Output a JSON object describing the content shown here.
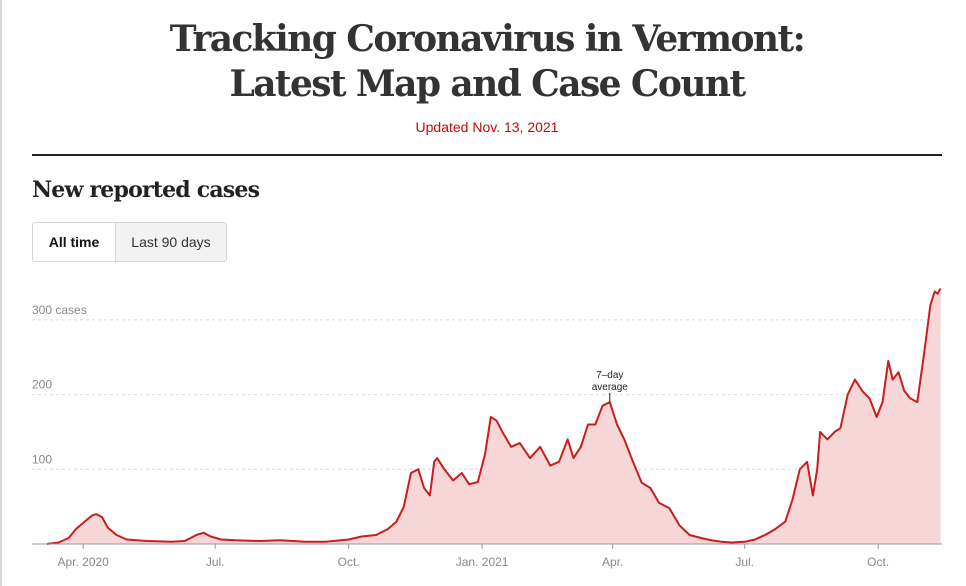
{
  "page": {
    "title_line1": "Tracking Coronavirus in Vermont:",
    "title_line2": "Latest Map and Case Count",
    "updated": "Updated Nov. 13, 2021"
  },
  "section": {
    "title": "New reported cases",
    "toggle": {
      "active": "All time",
      "inactive": "Last 90 days"
    }
  },
  "colors": {
    "line": "#c81e1e",
    "fill": "#f6d6d6",
    "accent": "#c30b0b",
    "grid": "#dcdcdc"
  },
  "chart_data": {
    "type": "area",
    "title": "New reported cases",
    "series": [
      {
        "name": "7–day average",
        "x": [
          "2020-03-07",
          "2020-03-15",
          "2020-03-22",
          "2020-03-27",
          "2020-04-02",
          "2020-04-07",
          "2020-04-10",
          "2020-04-14",
          "2020-04-18",
          "2020-04-24",
          "2020-05-01",
          "2020-05-15",
          "2020-06-01",
          "2020-06-10",
          "2020-06-18",
          "2020-06-23",
          "2020-06-28",
          "2020-07-05",
          "2020-07-15",
          "2020-08-01",
          "2020-08-15",
          "2020-09-01",
          "2020-09-15",
          "2020-10-01",
          "2020-10-10",
          "2020-10-20",
          "2020-10-28",
          "2020-11-03",
          "2020-11-08",
          "2020-11-13",
          "2020-11-18",
          "2020-11-22",
          "2020-11-26",
          "2020-11-29",
          "2020-12-01",
          "2020-12-06",
          "2020-12-12",
          "2020-12-18",
          "2020-12-23",
          "2020-12-29",
          "2021-01-03",
          "2021-01-07",
          "2021-01-11",
          "2021-01-15",
          "2021-01-21",
          "2021-01-27",
          "2021-02-03",
          "2021-02-10",
          "2021-02-17",
          "2021-02-23",
          "2021-03-01",
          "2021-03-05",
          "2021-03-10",
          "2021-03-15",
          "2021-03-20",
          "2021-03-25",
          "2021-03-30",
          "2021-04-04",
          "2021-04-09",
          "2021-04-15",
          "2021-04-21",
          "2021-04-27",
          "2021-05-03",
          "2021-05-10",
          "2021-05-17",
          "2021-05-24",
          "2021-06-01",
          "2021-06-08",
          "2021-06-15",
          "2021-06-22",
          "2021-07-01",
          "2021-07-08",
          "2021-07-15",
          "2021-07-22",
          "2021-07-29",
          "2021-08-03",
          "2021-08-08",
          "2021-08-13",
          "2021-08-17",
          "2021-08-20",
          "2021-08-22",
          "2021-08-27",
          "2021-09-01",
          "2021-09-05",
          "2021-09-10",
          "2021-09-15",
          "2021-09-20",
          "2021-09-25",
          "2021-09-30",
          "2021-10-04",
          "2021-10-08",
          "2021-10-11",
          "2021-10-15",
          "2021-10-19",
          "2021-10-23",
          "2021-10-28",
          "2021-11-02",
          "2021-11-06",
          "2021-11-09",
          "2021-11-11",
          "2021-11-13"
        ],
        "values": [
          0,
          2,
          8,
          20,
          30,
          38,
          40,
          36,
          22,
          12,
          6,
          4,
          3,
          4,
          12,
          15,
          10,
          6,
          5,
          4,
          5,
          3,
          3,
          6,
          10,
          12,
          20,
          30,
          50,
          95,
          100,
          75,
          65,
          110,
          115,
          100,
          85,
          95,
          80,
          83,
          120,
          170,
          165,
          150,
          130,
          135,
          115,
          130,
          105,
          110,
          140,
          115,
          130,
          160,
          160,
          185,
          190,
          160,
          140,
          110,
          82,
          75,
          55,
          48,
          25,
          12,
          8,
          5,
          3,
          2,
          3,
          6,
          12,
          20,
          30,
          60,
          100,
          110,
          65,
          100,
          150,
          140,
          150,
          155,
          200,
          220,
          205,
          195,
          170,
          190,
          245,
          220,
          230,
          205,
          195,
          190,
          260,
          320,
          338,
          335,
          342
        ]
      }
    ],
    "ylim": [
      0,
      340
    ],
    "yticks": [
      100,
      200,
      300
    ],
    "ytick_labels": [
      "100",
      "200",
      "300 cases"
    ],
    "xticks": [
      "2020-04-01",
      "2020-07-01",
      "2020-10-01",
      "2021-01-01",
      "2021-04-01",
      "2021-07-01",
      "2021-10-01"
    ],
    "xtick_labels": [
      "Apr. 2020",
      "Jul.",
      "Oct.",
      "Jan. 2021",
      "Apr.",
      "Jul.",
      "Oct."
    ],
    "annotation": {
      "text_line1": "7–day",
      "text_line2": "average",
      "x": "2021-03-30"
    },
    "grid": true
  }
}
